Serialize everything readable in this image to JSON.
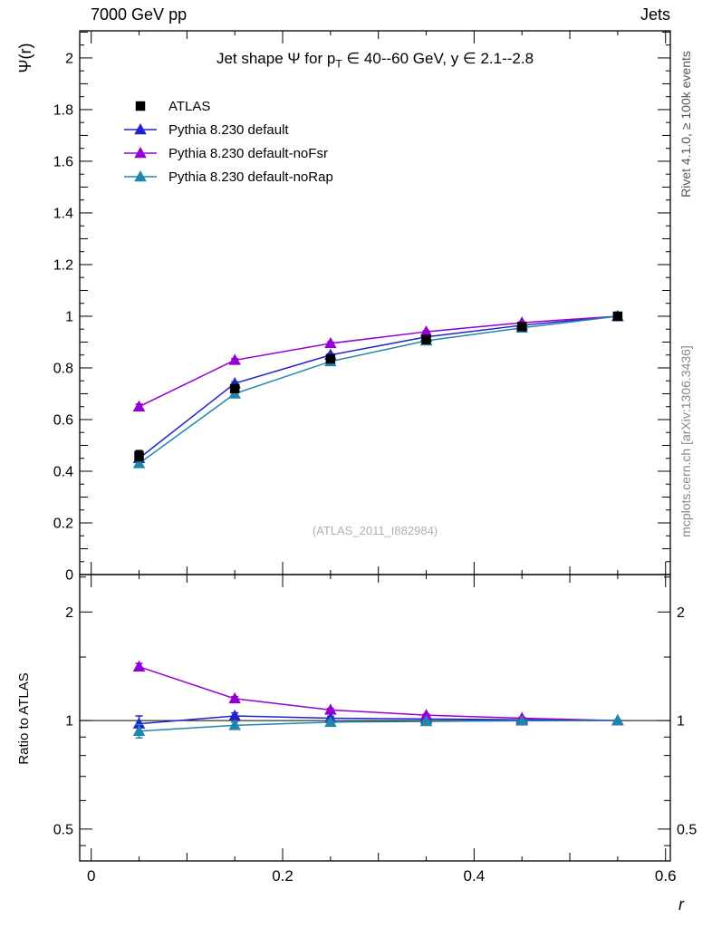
{
  "page": {
    "header_left": "7000 GeV pp",
    "header_right": "Jets",
    "watermark": "(ATLAS_2011_I882984)",
    "right_label_top": "Rivet 4.1.0, ≥ 100k events",
    "right_label_bottom": "mcplots.cern.ch [arXiv:1306.3436]"
  },
  "chart_data": {
    "type": "line",
    "title": {
      "pre": "Jet shape Ψ for p",
      "sub": "T",
      "post": " ∈ 40--60 GeV, y ∈ 2.1--2.8"
    },
    "xlabel": "r",
    "x": [
      0.05,
      0.15,
      0.25,
      0.35,
      0.45,
      0.55
    ],
    "xlim": [
      -0.012,
      0.605
    ],
    "xticks": {
      "major": [
        0,
        0.2,
        0.4,
        0.6
      ],
      "labels": [
        "0",
        "0.2",
        "0.4",
        "0.6"
      ]
    },
    "panels": {
      "main": {
        "ylabel": "Ψ(r)",
        "scale": "linear",
        "ylim": [
          0,
          2.105
        ],
        "yticks": {
          "major": [
            0,
            0.2,
            0.4,
            0.6,
            0.8,
            1,
            1.2,
            1.4,
            1.6,
            1.8,
            2
          ],
          "labels": [
            "0",
            "0.2",
            "0.4",
            "0.6",
            "0.8",
            "1",
            "1.2",
            "1.4",
            "1.6",
            "1.8",
            "2"
          ]
        }
      },
      "ratio": {
        "ylabel": "Ratio to ATLAS",
        "scale": "log",
        "ylim": [
          0.408,
          2.54
        ],
        "yticks": {
          "major": [
            0.5,
            1,
            2
          ],
          "labels": [
            "0.5",
            "1",
            "2"
          ],
          "minor": [
            0.45,
            0.6,
            0.7,
            0.8,
            0.9,
            1.5,
            2.5
          ]
        },
        "reference_line": 1
      }
    },
    "series": [
      {
        "id": "atlas",
        "name": "ATLAS",
        "is_data": true,
        "color": "#000000",
        "marker": "square",
        "line": false,
        "y": [
          0.46,
          0.72,
          0.835,
          0.91,
          0.96,
          1.0
        ],
        "y_err": [
          0.02,
          0.012,
          0.009,
          0.007,
          0.005,
          0.004
        ]
      },
      {
        "id": "pythia-default",
        "name": "Pythia 8.230 default",
        "is_data": false,
        "color": "#2222cc",
        "marker": "triangle",
        "line": true,
        "y": [
          0.45,
          0.74,
          0.85,
          0.92,
          0.965,
          1.0
        ],
        "y_err": [
          0.015,
          0.006,
          0.005,
          0.004,
          0.003,
          0.002
        ],
        "ratio": [
          0.98,
          1.03,
          1.015,
          1.01,
          1.005,
          1.0
        ],
        "ratio_err": [
          0.05,
          0.02,
          0.012,
          0.008,
          0.005,
          0.003
        ]
      },
      {
        "id": "pythia-default-nofsr",
        "name": "Pythia 8.230 default-noFsr",
        "is_data": false,
        "color": "#9400d3",
        "marker": "triangle",
        "line": true,
        "y": [
          0.65,
          0.83,
          0.895,
          0.94,
          0.975,
          1.0
        ],
        "y_err": [
          0.01,
          0.006,
          0.005,
          0.004,
          0.003,
          0.002
        ],
        "ratio": [
          1.41,
          1.15,
          1.07,
          1.035,
          1.015,
          1.0
        ],
        "ratio_err": [
          0.03,
          0.015,
          0.01,
          0.007,
          0.005,
          0.003
        ]
      },
      {
        "id": "pythia-default-norap",
        "name": "Pythia 8.230 default-noRap",
        "is_data": false,
        "color": "#1f87ac",
        "marker": "triangle",
        "line": true,
        "y": [
          0.43,
          0.7,
          0.825,
          0.905,
          0.955,
          1.0
        ],
        "y_err": [
          0.012,
          0.006,
          0.005,
          0.004,
          0.003,
          0.002
        ],
        "ratio": [
          0.935,
          0.97,
          0.99,
          0.995,
          0.998,
          1.0
        ],
        "ratio_err": [
          0.04,
          0.02,
          0.012,
          0.008,
          0.005,
          0.003
        ]
      }
    ]
  }
}
